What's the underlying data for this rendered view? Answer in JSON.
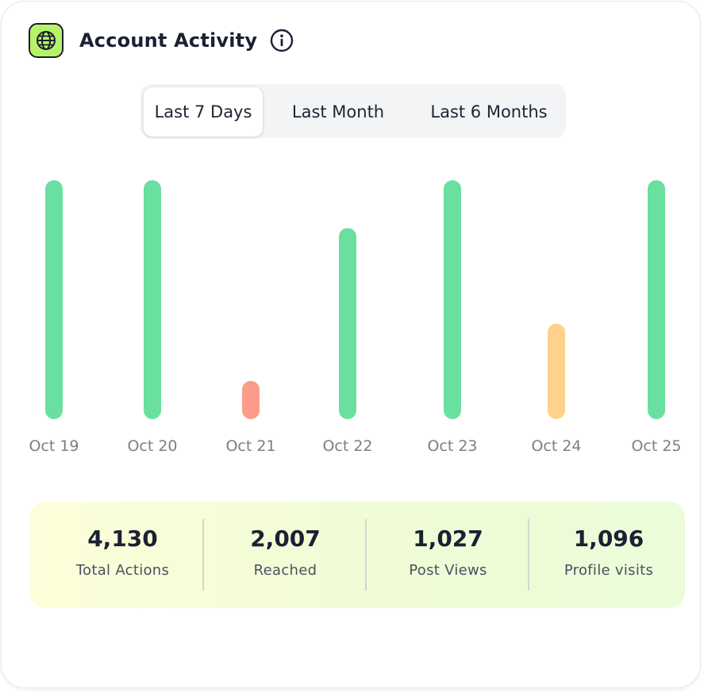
{
  "header": {
    "title": "Account Activity",
    "icon": "globe-icon",
    "info_icon": "info-icon"
  },
  "tabs": [
    {
      "label": "Last 7 Days",
      "active": true
    },
    {
      "label": "Last Month",
      "active": false
    },
    {
      "label": "Last 6 Months",
      "active": false
    }
  ],
  "colors": {
    "high": "#6ae0a0",
    "medium": "#ffd18a",
    "low": "#fb9c8a",
    "accent": "#b6f36a"
  },
  "chart_data": {
    "type": "bar",
    "categories": [
      "Oct 19",
      "Oct 20",
      "Oct 21",
      "Oct 22",
      "Oct 23",
      "Oct 24",
      "Oct 25"
    ],
    "values": [
      100,
      100,
      16,
      80,
      100,
      40,
      100
    ],
    "levels": [
      "high",
      "high",
      "low",
      "high",
      "high",
      "medium",
      "high"
    ],
    "ylim": [
      0,
      100
    ],
    "grid": false,
    "legend": "none"
  },
  "stats": [
    {
      "value": "4,130",
      "label": "Total Actions"
    },
    {
      "value": "2,007",
      "label": "Reached"
    },
    {
      "value": "1,027",
      "label": "Post Views"
    },
    {
      "value": "1,096",
      "label": "Profile visits"
    }
  ]
}
